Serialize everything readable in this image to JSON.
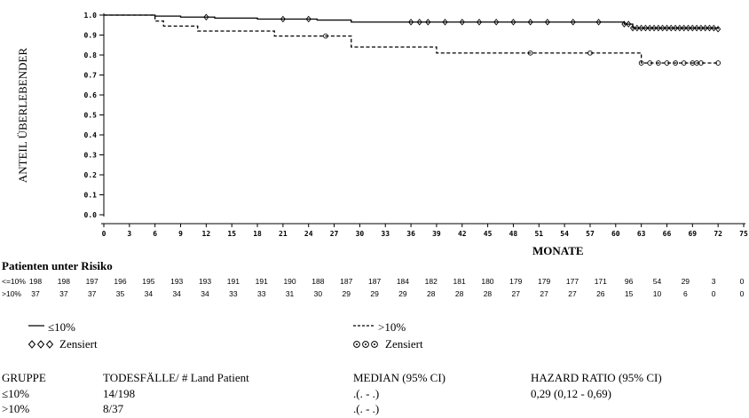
{
  "chart_data": {
    "type": "line",
    "ylabel": "ANTEIL ÜBERLEBENDER",
    "xlabel": "MONATE",
    "ylim": [
      0.0,
      1.0
    ],
    "yticks": [
      "0.0",
      "0.1",
      "0.2",
      "0.3",
      "0.4",
      "0.5",
      "0.6",
      "0.7",
      "0.8",
      "0.9",
      "1.0"
    ],
    "xlim": [
      0,
      75
    ],
    "xticks": [
      "0",
      "3",
      "6",
      "9",
      "12",
      "15",
      "18",
      "21",
      "24",
      "27",
      "30",
      "33",
      "36",
      "39",
      "42",
      "45",
      "48",
      "51",
      "54",
      "57",
      "60",
      "63",
      "66",
      "69",
      "72",
      "75"
    ],
    "series": [
      {
        "name": "≤10%",
        "style": "solid",
        "color": "#000000",
        "x": [
          0,
          6,
          9,
          13,
          18,
          25,
          29,
          61,
          62,
          72
        ],
        "y": [
          1.0,
          0.995,
          0.99,
          0.985,
          0.98,
          0.975,
          0.965,
          0.955,
          0.935,
          0.93
        ],
        "censored_x": [
          12,
          21,
          24,
          36,
          37,
          38,
          40,
          42,
          44,
          46,
          48,
          50,
          52,
          55,
          58,
          61,
          61.5,
          62,
          62.5,
          63,
          63.5,
          64,
          64.5,
          65,
          65.5,
          66,
          66.5,
          67,
          67.5,
          68,
          68.5,
          69,
          69.5,
          70,
          70.5,
          71,
          71.5,
          72
        ]
      },
      {
        "name": ">10%",
        "style": "dashed",
        "color": "#000000",
        "x": [
          0,
          6,
          7,
          11,
          20,
          29,
          39,
          62,
          63,
          72
        ],
        "y": [
          1.0,
          0.97,
          0.945,
          0.92,
          0.895,
          0.84,
          0.81,
          0.81,
          0.76,
          0.76
        ],
        "censored_x": [
          26,
          50,
          57,
          63,
          64,
          65,
          66,
          67,
          68,
          69,
          69.5,
          70,
          72
        ]
      }
    ]
  },
  "risk_table": {
    "title": "Patienten unter Risiko",
    "rows": [
      {
        "label": "<=10%",
        "values": [
          "198",
          "198",
          "197",
          "196",
          "195",
          "193",
          "193",
          "191",
          "191",
          "190",
          "188",
          "187",
          "187",
          "184",
          "182",
          "181",
          "180",
          "179",
          "179",
          "177",
          "171",
          "96",
          "54",
          "29",
          "3",
          "0"
        ]
      },
      {
        "label": ">10%",
        "values": [
          "37",
          "37",
          "37",
          "35",
          "34",
          "34",
          "34",
          "33",
          "33",
          "31",
          "30",
          "29",
          "29",
          "29",
          "28",
          "28",
          "28",
          "27",
          "27",
          "27",
          "26",
          "15",
          "10",
          "6",
          "0",
          "0"
        ]
      }
    ]
  },
  "legend": {
    "le10": "≤10%",
    "censored_le10": "Zensiert",
    "gt10": ">10%",
    "censored_gt10": "Zensiert"
  },
  "summary_table": {
    "headers": {
      "group": "GRUPPE",
      "deaths": "TODESFÄLLE/ # Land Patient",
      "median": "MEDIAN (95% CI)",
      "hr": "HAZARD RATIO (95% CI)"
    },
    "rows": [
      {
        "group": "≤10%",
        "deaths": "14/198",
        "median": ".(. - .)",
        "hr": "0,29 (0,12 - 0,69)"
      },
      {
        "group": ">10%",
        "deaths": "8/37",
        "median": ".(. - .)",
        "hr": ""
      }
    ]
  }
}
